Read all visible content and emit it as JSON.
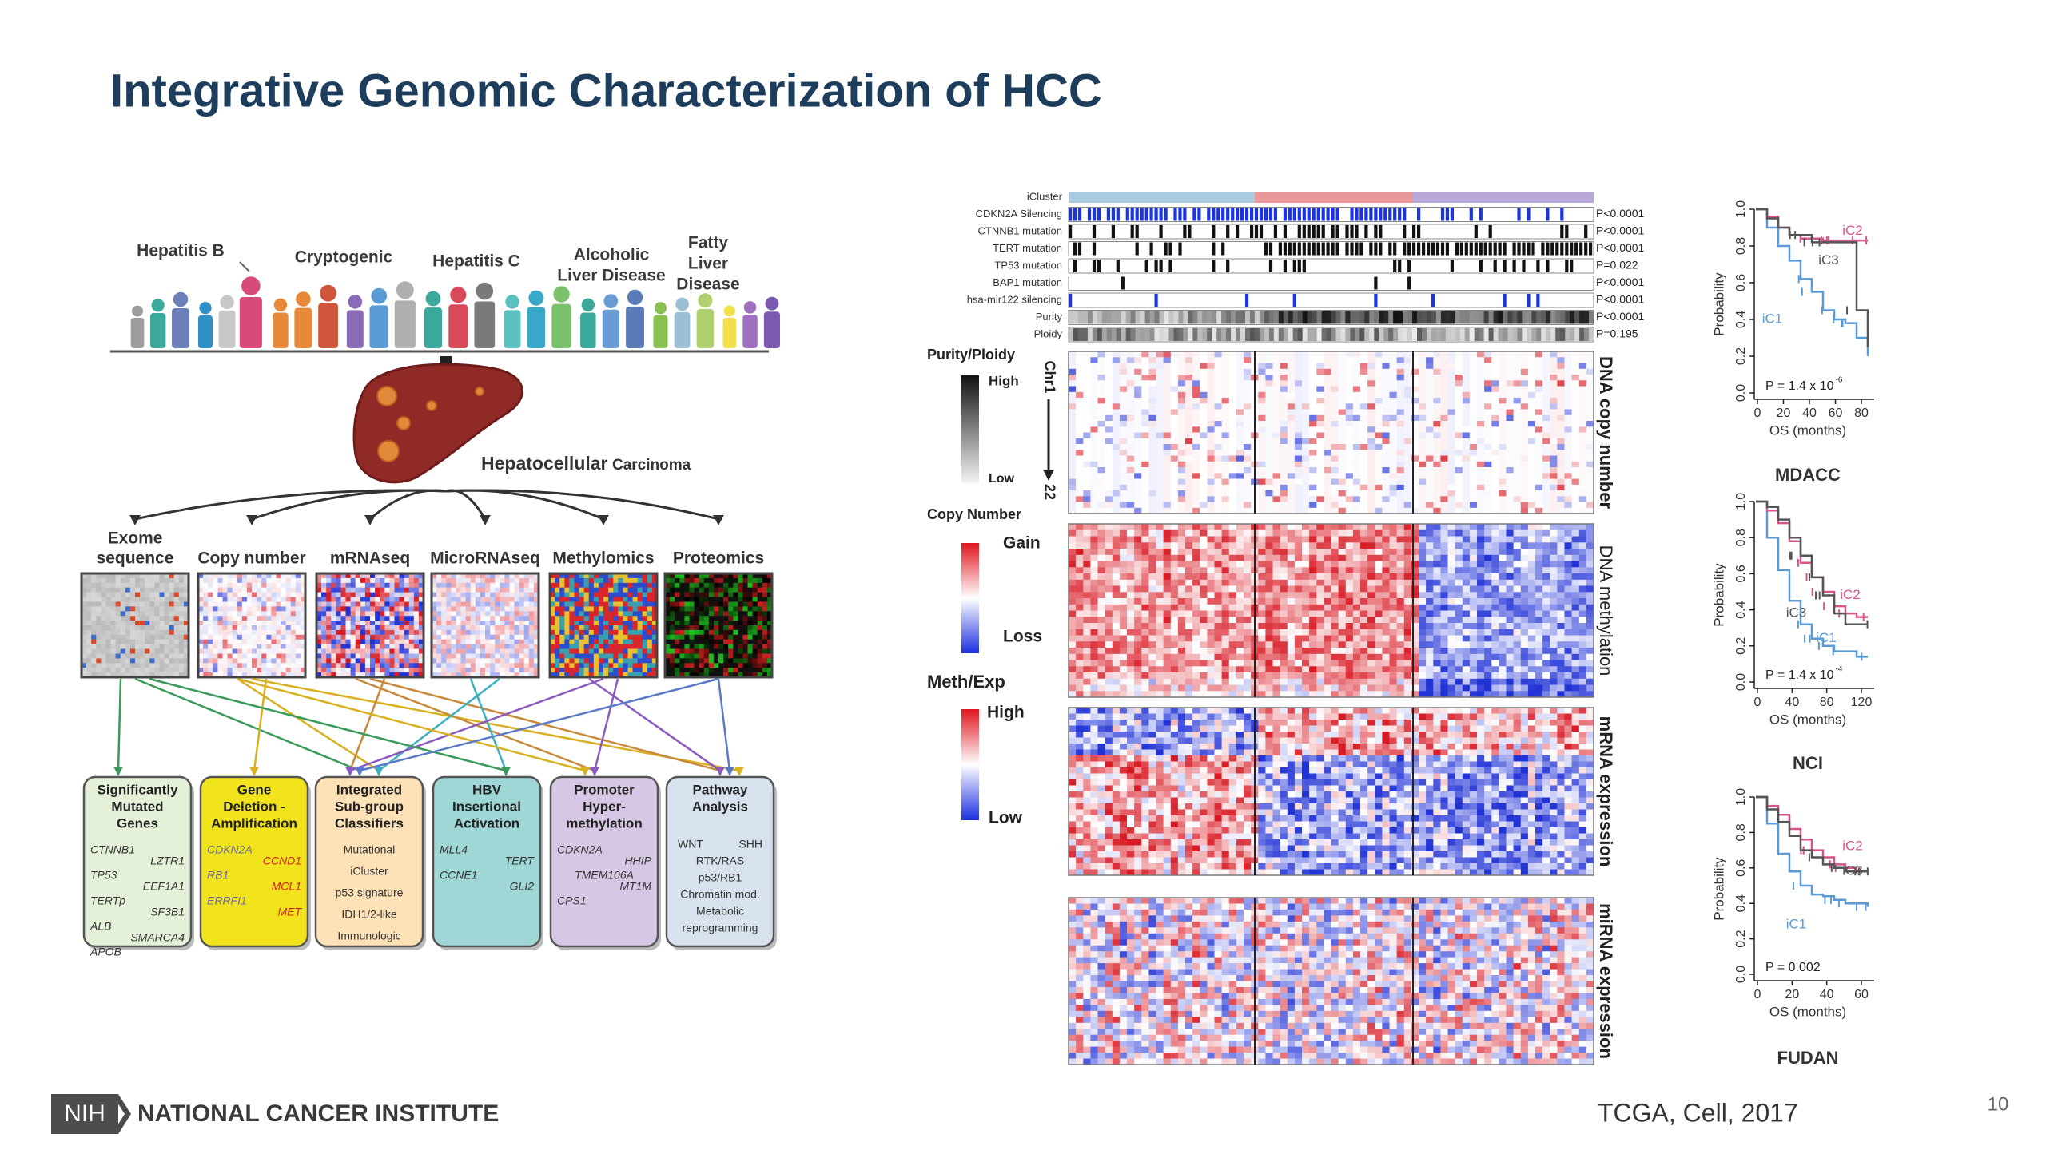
{
  "title": "Integrative Genomic Characterization of HCC",
  "etiologies": [
    [
      "Hepatitis B"
    ],
    [
      "Cryptogenic"
    ],
    [
      "Hepatitis C"
    ],
    [
      "Alcoholic",
      "Liver Disease"
    ],
    [
      "Fatty",
      "Liver",
      "Disease"
    ]
  ],
  "cancer": {
    "name": "Hepatocellular",
    "suffix": "Carcinoma"
  },
  "platforms": [
    [
      "Exome",
      "sequence"
    ],
    [
      "Copy number"
    ],
    [
      "mRNAseq"
    ],
    [
      "MicroRNAseq"
    ],
    [
      "Methylomics"
    ],
    [
      "Proteomics"
    ]
  ],
  "findings": [
    {
      "title": [
        "Significantly",
        "Mutated",
        "Genes"
      ],
      "items": [
        "CTNNB1",
        "LZTR1",
        "TP53",
        "EEF1A1",
        "TERTp",
        "SF3B1",
        "ALB",
        "SMARCA4",
        "APOB"
      ]
    },
    {
      "title": [
        "Gene",
        "Deletion -",
        "Amplification"
      ],
      "items": [
        "CDKN2A",
        "CCND1",
        "RB1",
        "MCL1",
        "ERRFI1",
        "MET"
      ]
    },
    {
      "title": [
        "Integrated",
        "Sub-group",
        "Classifiers"
      ],
      "items": [
        "Mutational",
        "iCluster",
        "p53 signature",
        "IDH1/2-like",
        "Immunologic"
      ]
    },
    {
      "title": [
        "HBV",
        "Insertional",
        "Activation"
      ],
      "items": [
        "MLL4",
        "TERT",
        "CCNE1",
        "GLI2"
      ]
    },
    {
      "title": [
        "Promoter",
        "Hyper-",
        "methylation"
      ],
      "items": [
        "CDKN2A",
        "HHIP",
        "TMEM106A",
        "MT1M",
        "CPS1"
      ]
    },
    {
      "title": [
        "Pathway",
        "Analysis"
      ],
      "items": [
        "WNT",
        "SHH",
        "RTK/RAS",
        "p53/RB1",
        "Chromatin mod.",
        "Metabolic",
        "reprogramming"
      ]
    }
  ],
  "tracks": [
    {
      "name": "iCluster"
    },
    {
      "name": "CDKN2A Silencing",
      "p": "P<0.0001"
    },
    {
      "name": "CTNNB1 mutation",
      "p": "P<0.0001"
    },
    {
      "name": "TERT mutation",
      "p": "P<0.0001"
    },
    {
      "name": "TP53 mutation",
      "p": "P=0.022"
    },
    {
      "name": "BAP1 mutation",
      "p": "P<0.0001"
    },
    {
      "name": "hsa-mir122 silencing",
      "p": "P<0.0001"
    },
    {
      "name": "Purity",
      "p": "P<0.0001"
    },
    {
      "name": "Ploidy",
      "p": "P=0.195"
    }
  ],
  "blocks": [
    "DNA copy number",
    "DNA methylation",
    "mRNA expression",
    "miRNA expression"
  ],
  "legend": {
    "purity_title": "Purity/Ploidy",
    "purity_high": "High",
    "purity_low": "Low",
    "chrom_top": "Chr1",
    "chrom_bottom": "22",
    "copy_title": "Copy Number",
    "gain": "Gain",
    "loss": "Loss",
    "meth_title": "Meth/Exp",
    "meth_high": "High",
    "meth_low": "Low"
  },
  "survival": [
    {
      "cohort": "MDACC",
      "ylabel": "Probability",
      "xlabel": "OS (months)",
      "p": "P = 1.4 x 10",
      "p_exp": "-6",
      "yticks": [
        "0.0",
        "0.2",
        "0.4",
        "0.6",
        "0.8",
        "1.0"
      ],
      "xticks": [
        "0",
        "20",
        "40",
        "60",
        "80"
      ],
      "curves": [
        "iC1",
        "iC2",
        "iC3"
      ]
    },
    {
      "cohort": "NCI",
      "ylabel": "Probability",
      "xlabel": "OS (months)",
      "p": "P = 1.4 x 10",
      "p_exp": "-4",
      "yticks": [
        "0.0",
        "0.2",
        "0.4",
        "0.6",
        "0.8",
        "1.0"
      ],
      "xticks": [
        "0",
        "40",
        "80",
        "120"
      ],
      "curves": [
        "iC1",
        "iC2",
        "iC3"
      ]
    },
    {
      "cohort": "FUDAN",
      "ylabel": "Probability",
      "xlabel": "OS (months)",
      "p": "P = 0.002",
      "yticks": [
        "0.0",
        "0.2",
        "0.4",
        "0.6",
        "0.8",
        "1.0"
      ],
      "xticks": [
        "0",
        "20",
        "40",
        "60"
      ],
      "curves": [
        "iC1",
        "iC2",
        "iC3"
      ]
    }
  ],
  "footer": {
    "logo": "NIH",
    "institute": "NATIONAL CANCER INSTITUTE",
    "citation": "TCGA, Cell, 2017",
    "page": "10"
  }
}
